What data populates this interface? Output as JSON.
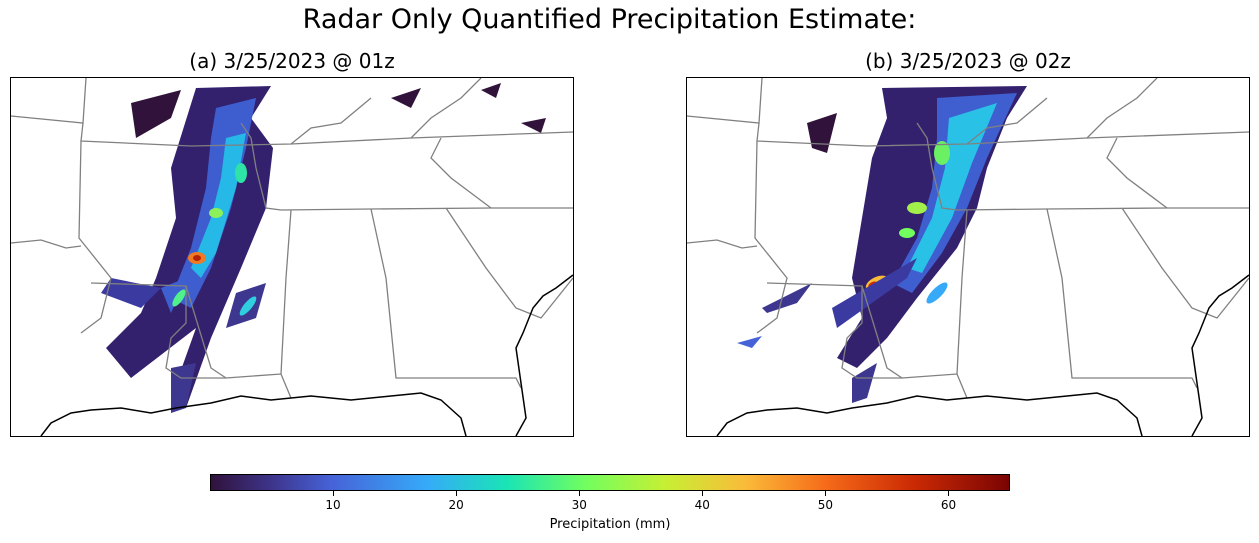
{
  "title": "Radar Only Quantified Precipitation Estimate:",
  "panels": [
    {
      "title": "(a) 3/25/2023 @ 01z"
    },
    {
      "title": "(b) 3/25/2023 @ 02z"
    }
  ],
  "colorbar": {
    "label": "Precipitation (mm)",
    "min": 0,
    "max": 65,
    "ticks": [
      "10",
      "20",
      "30",
      "40",
      "50",
      "60"
    ],
    "colormap": "turbo"
  },
  "colors": {
    "state_borders": "#808080",
    "coastline": "#000000"
  }
}
